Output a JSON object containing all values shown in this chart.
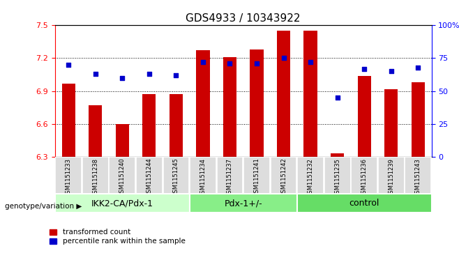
{
  "title": "GDS4933 / 10343922",
  "samples": [
    "GSM1151233",
    "GSM1151238",
    "GSM1151240",
    "GSM1151244",
    "GSM1151245",
    "GSM1151234",
    "GSM1151237",
    "GSM1151241",
    "GSM1151242",
    "GSM1151232",
    "GSM1151235",
    "GSM1151236",
    "GSM1151239",
    "GSM1151243"
  ],
  "bar_values": [
    6.97,
    6.77,
    6.6,
    6.87,
    6.87,
    7.27,
    7.21,
    7.28,
    7.45,
    7.45,
    6.33,
    7.04,
    6.92,
    6.98
  ],
  "dot_values": [
    70,
    63,
    60,
    63,
    62,
    72,
    71,
    71,
    75,
    72,
    45,
    67,
    65,
    68
  ],
  "groups": [
    {
      "label": "IKK2-CA/Pdx-1",
      "start": 0,
      "end": 5,
      "color": "#ccffcc"
    },
    {
      "label": "Pdx-1+/-",
      "start": 5,
      "end": 9,
      "color": "#88ee88"
    },
    {
      "label": "control",
      "start": 9,
      "end": 14,
      "color": "#66dd66"
    }
  ],
  "ymin": 6.3,
  "ymax": 7.5,
  "yticks": [
    6.3,
    6.6,
    6.9,
    7.2,
    7.5
  ],
  "y2ticks": [
    0,
    25,
    50,
    75,
    100
  ],
  "bar_color": "#cc0000",
  "dot_color": "#0000cc",
  "legend_bar_label": "transformed count",
  "legend_dot_label": "percentile rank within the sample",
  "genotype_label": "genotype/variation",
  "title_fontsize": 11,
  "tick_fontsize": 8,
  "group_label_fontsize": 9,
  "group_colors": [
    "#ccffcc",
    "#88ee88",
    "#66dd66"
  ]
}
